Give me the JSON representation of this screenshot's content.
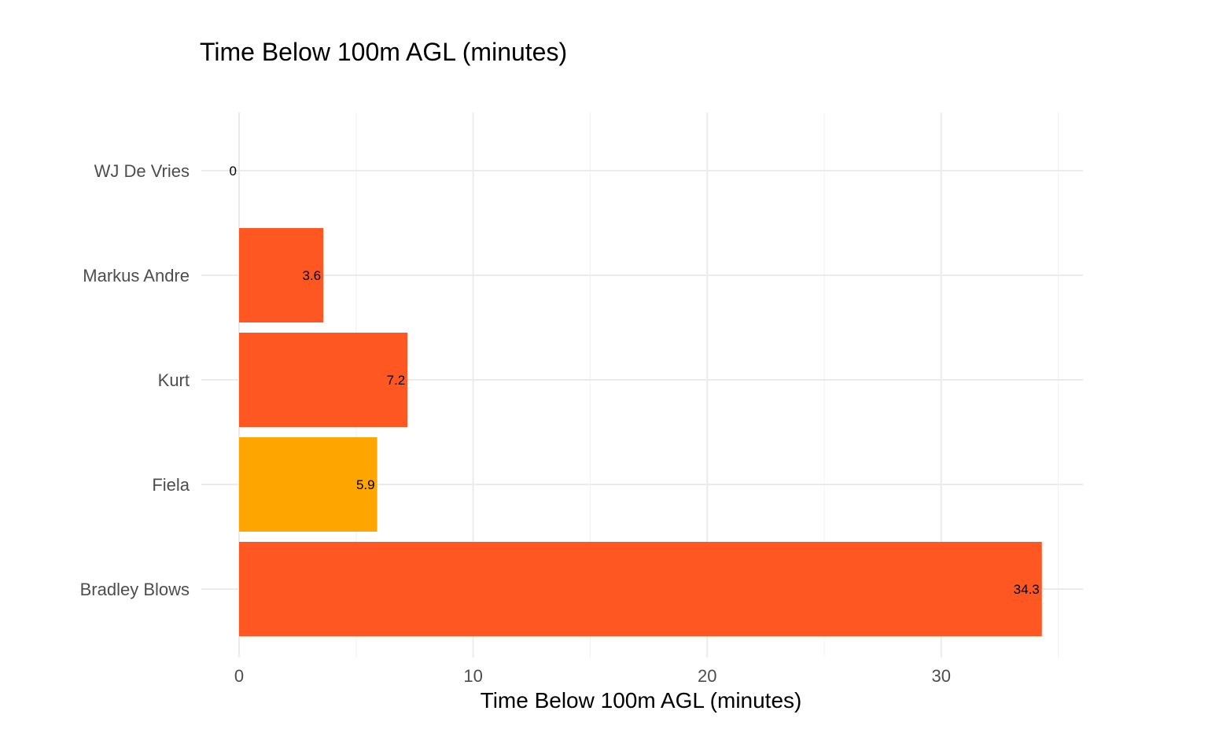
{
  "chart_data": {
    "type": "bar",
    "orientation": "horizontal",
    "title": "Time Below 100m AGL (minutes)",
    "xlabel": "Time Below 100m AGL (minutes)",
    "ylabel": "",
    "categories": [
      "WJ De Vries",
      "Markus Andre",
      "Kurt",
      "Fiela",
      "Bradley Blows"
    ],
    "values": [
      0,
      3.6,
      7.2,
      5.9,
      34.3
    ],
    "data_labels": [
      "0",
      "3.6",
      "7.2",
      "5.9",
      "34.3"
    ],
    "bar_colors": [
      "#FF5722",
      "#FF5722",
      "#FF5722",
      "#FFA500",
      "#FF5722"
    ],
    "xlim": [
      0,
      35
    ],
    "xticks": [
      0,
      10,
      20,
      30
    ],
    "xtick_labels": [
      "0",
      "10",
      "20",
      "30"
    ],
    "grid": true,
    "legend": "none"
  }
}
